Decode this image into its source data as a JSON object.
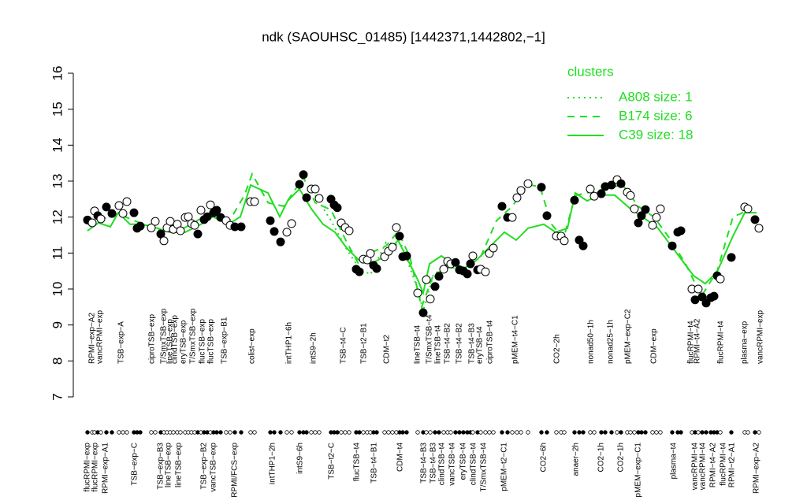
{
  "chart_data": {
    "type": "scatter",
    "title": "ndk (SAOUHSC_01485) [1442371,1442802,−1]",
    "ylim": [
      7,
      16
    ],
    "yticks": [
      7,
      8,
      9,
      10,
      11,
      12,
      13,
      14,
      15,
      16
    ],
    "xlim": [
      10.3,
      97.1
    ],
    "legend_title": "clusters",
    "legend_position": "top-right",
    "points": {
      "x": [
        11.1,
        11.7,
        12.0,
        12.4,
        12.8,
        13.5,
        14.2,
        15.1,
        15.6,
        16.1,
        17.0,
        17.4,
        17.8,
        19.2,
        19.7,
        20.4,
        20.8,
        21.2,
        21.6,
        22.0,
        22.5,
        22.9,
        23.5,
        23.9,
        24.3,
        24.7,
        25.1,
        25.5,
        25.9,
        26.3,
        26.7,
        27.1,
        27.5,
        28.0,
        28.7,
        29.2,
        29.8,
        30.6,
        31.8,
        32.3,
        34.3,
        34.8,
        35.6,
        36.4,
        37.0,
        38.0,
        38.5,
        38.9,
        39.5,
        40.0,
        40.5,
        42.0,
        42.4,
        42.8,
        43.3,
        43.8,
        44.3,
        45.2,
        45.6,
        46.1,
        46.6,
        47.0,
        47.4,
        47.8,
        48.8,
        49.3,
        49.8,
        50.3,
        50.7,
        51.1,
        51.6,
        53.0,
        53.7,
        54.1,
        54.6,
        55.2,
        55.7,
        56.3,
        56.8,
        57.2,
        57.8,
        58.3,
        58.8,
        59.3,
        59.7,
        60.0,
        60.6,
        61.0,
        61.6,
        62.1,
        62.6,
        63.7,
        64.4,
        65.0,
        65.6,
        66.1,
        67.0,
        68.7,
        69.4,
        70.6,
        71.2,
        71.6,
        72.9,
        73.5,
        74.0,
        74.9,
        75.4,
        76.3,
        76.8,
        77.6,
        78.3,
        78.8,
        79.6,
        80.0,
        80.5,
        81.0,
        81.4,
        81.9,
        82.8,
        83.3,
        83.8,
        85.3,
        86.0,
        86.4,
        87.8,
        88.2,
        88.6,
        89.1,
        89.6,
        90.2,
        90.6,
        91.0,
        91.4,
        92.8,
        94.5,
        94.9,
        95.8,
        96.3
      ],
      "y": [
        11.92,
        11.84,
        12.17,
        12.04,
        11.95,
        12.28,
        12.1,
        12.32,
        12.1,
        12.43,
        12.12,
        11.69,
        11.75,
        11.7,
        11.88,
        11.53,
        11.34,
        11.7,
        11.88,
        11.66,
        11.8,
        11.62,
        11.99,
        12.01,
        11.82,
        11.77,
        11.53,
        12.19,
        11.93,
        12.01,
        12.34,
        12.12,
        12.19,
        11.99,
        11.9,
        11.77,
        11.73,
        11.73,
        12.43,
        12.43,
        11.9,
        11.6,
        11.31,
        11.58,
        11.82,
        12.91,
        13.18,
        12.54,
        12.78,
        12.78,
        12.52,
        12.5,
        12.34,
        12.26,
        11.84,
        11.71,
        11.62,
        10.55,
        10.48,
        10.83,
        10.81,
        10.99,
        10.66,
        10.57,
        10.9,
        11.05,
        11.16,
        11.71,
        11.47,
        10.9,
        10.92,
        9.89,
        9.34,
        10.26,
        9.72,
        10.07,
        10.35,
        10.55,
        10.77,
        10.7,
        10.74,
        10.53,
        10.5,
        10.42,
        10.7,
        10.92,
        10.53,
        10.55,
        10.48,
        10.99,
        11.14,
        12.3,
        11.99,
        11.99,
        12.54,
        12.74,
        12.93,
        12.83,
        12.04,
        11.47,
        11.47,
        11.34,
        12.47,
        11.36,
        11.2,
        12.78,
        12.58,
        12.65,
        12.85,
        12.89,
        13.04,
        12.93,
        12.69,
        12.6,
        12.23,
        11.84,
        12.04,
        12.21,
        11.77,
        11.99,
        12.23,
        11.2,
        11.58,
        11.62,
        10.0,
        9.7,
        10.0,
        9.78,
        9.61,
        9.76,
        9.8,
        10.37,
        10.28,
        10.88,
        12.28,
        12.23,
        11.93,
        11.69
      ],
      "filled": [
        true,
        false,
        false,
        true,
        false,
        true,
        true,
        false,
        false,
        false,
        true,
        true,
        true,
        false,
        false,
        true,
        false,
        false,
        false,
        false,
        false,
        false,
        false,
        false,
        false,
        false,
        true,
        false,
        true,
        true,
        false,
        true,
        true,
        true,
        false,
        false,
        true,
        true,
        false,
        false,
        true,
        true,
        true,
        false,
        false,
        true,
        true,
        true,
        false,
        false,
        false,
        true,
        true,
        true,
        false,
        false,
        false,
        true,
        true,
        false,
        false,
        false,
        true,
        true,
        false,
        false,
        false,
        false,
        true,
        true,
        true,
        false,
        true,
        false,
        false,
        true,
        true,
        false,
        false,
        false,
        true,
        true,
        true,
        true,
        true,
        false,
        true,
        false,
        false,
        false,
        false,
        true,
        true,
        false,
        false,
        false,
        false,
        true,
        true,
        false,
        false,
        false,
        true,
        true,
        true,
        false,
        false,
        true,
        true,
        true,
        false,
        true,
        false,
        false,
        false,
        true,
        true,
        true,
        false,
        false,
        false,
        true,
        true,
        true,
        false,
        true,
        false,
        true,
        true,
        true,
        true,
        true,
        false,
        true,
        false,
        false,
        true,
        false
      ]
    },
    "series": [
      {
        "name": "A808 size: 1",
        "color": "#22dd22",
        "dash": "dotted",
        "x": [
          40.0,
          42.0,
          44.0,
          45.5,
          47.0,
          49.0,
          51.0,
          53.0,
          53.7,
          55.0,
          57.0
        ],
        "values": [
          12.6,
          11.9,
          11.1,
          10.6,
          10.4,
          11.3,
          11.2,
          10.0,
          9.4,
          10.4,
          10.7
        ]
      },
      {
        "name": "B174 size: 6",
        "color": "#22dd22",
        "dash": "dashed",
        "x": [
          11.1,
          13.0,
          15.0,
          17.0,
          19.0,
          21.0,
          23.0,
          25.0,
          27.0,
          29.0,
          31.0,
          32.0,
          34.0,
          36.0,
          38.5,
          40.0,
          42.0,
          44.0,
          45.5,
          47.0,
          49.0,
          50.5,
          52.0,
          53.5,
          55.0,
          57.0,
          59.0,
          61.0,
          63.0,
          65.0,
          67.0,
          68.5,
          70.0,
          71.5,
          73.0,
          75.0,
          77.0,
          79.0,
          81.0,
          83.0,
          85.0,
          87.0,
          89.0,
          91.0,
          93.0,
          95.0
        ],
        "values": [
          11.8,
          11.95,
          12.1,
          11.9,
          11.75,
          11.6,
          11.65,
          11.9,
          12.15,
          11.85,
          12.6,
          13.2,
          12.4,
          12.3,
          13.1,
          12.4,
          12.2,
          11.3,
          10.7,
          11.0,
          11.2,
          11.6,
          10.9,
          9.5,
          10.4,
          10.6,
          10.55,
          10.9,
          11.9,
          12.3,
          12.9,
          12.85,
          11.8,
          11.4,
          12.6,
          12.7,
          12.8,
          12.9,
          12.3,
          12.0,
          11.4,
          10.7,
          9.8,
          10.5,
          12.0,
          12.2
        ]
      },
      {
        "name": "C39 size: 18",
        "color": "#22dd22",
        "dash": "solid",
        "x": [
          11.1,
          12.5,
          14.0,
          15.0,
          16.5,
          18.0,
          20.0,
          21.5,
          23.5,
          25.5,
          27.0,
          29.0,
          30.5,
          31.8,
          34.0,
          35.5,
          36.5,
          38.0,
          39.5,
          41.0,
          42.5,
          44.0,
          45.5,
          47.0,
          49.0,
          50.5,
          51.5,
          53.0,
          53.7,
          54.5,
          56.0,
          57.5,
          59.0,
          60.5,
          62.5,
          64.0,
          65.5,
          67.0,
          69.0,
          70.5,
          72.0,
          73.0,
          74.5,
          76.0,
          78.0,
          80.0,
          81.5,
          83.5,
          85.0,
          86.5,
          88.0,
          89.5,
          91.0,
          93.0,
          94.5,
          96.0
        ],
        "values": [
          11.62,
          11.84,
          11.73,
          12.12,
          11.8,
          11.8,
          11.69,
          11.58,
          11.58,
          11.8,
          12.01,
          11.8,
          12.01,
          12.89,
          12.67,
          12.01,
          12.45,
          12.78,
          12.23,
          11.8,
          11.58,
          11.14,
          10.81,
          10.7,
          10.92,
          11.36,
          10.92,
          10.26,
          9.89,
          10.7,
          10.92,
          10.7,
          10.59,
          10.81,
          11.25,
          11.58,
          11.36,
          11.69,
          11.8,
          11.58,
          11.69,
          12.67,
          12.45,
          12.61,
          12.61,
          12.23,
          12.01,
          11.69,
          11.25,
          10.81,
          10.37,
          10.15,
          10.48,
          11.47,
          12.12,
          12.12
        ]
      }
    ],
    "labels_top": {
      "x": [
        11.7,
        12.7,
        15.4,
        19.3,
        20.8,
        21.6,
        22.2,
        23.3,
        24.5,
        25.7,
        26.8,
        28.5,
        32.0,
        36.7,
        39.8,
        43.6,
        46.2,
        49.1,
        53.0,
        54.5,
        55.6,
        56.8,
        58.3,
        59.9,
        60.9,
        62.2,
        65.4,
        70.7,
        75.0,
        77.5,
        79.7,
        83.0,
        87.7,
        88.5,
        91.5,
        94.5,
        96.5
      ],
      "text": [
        "RPMI−exp−A2",
        "vancRPMI−exp",
        "TSB−exp−A",
        "ciproTSB−exp",
        "T/SmxTSB−exp",
        "lineTSB−exp",
        "clindTSB−exp",
        "eryTSB−exp",
        "T/SmxTSB−exp",
        "flucTSB−exp",
        "flucTSB−exp",
        "TSB−exp−B1",
        "colist−exp",
        "intTHP1−6h",
        "intS9−2h",
        "TSB−t4−C",
        "TSB−t2−B1",
        "CDM−t2",
        "lineTSB−t4",
        "T/SmxTSB−t4",
        "lineTSB−t4",
        "TSB−t4−B2",
        "TSB−t4−B2",
        "TSB−t4−B3",
        "eryTSB−t4",
        "ciproTSB−t4",
        "pMEM−t4−C1",
        "CO2−2h",
        "nonad50−1h",
        "nonad25−1h",
        "pMEM−exp−C2",
        "CDM−exp",
        "flucRPMI−t4",
        "RPMI−t4−A2",
        "flucRPMI−t4",
        "plasma−exp",
        "vancRPMI−exp"
      ]
    },
    "labels_bottom": {
      "x": [
        11.1,
        12.1,
        13.4,
        17.1,
        20.4,
        21.4,
        22.7,
        25.9,
        27.1,
        29.8,
        34.6,
        38.1,
        42.1,
        45.3,
        47.5,
        50.8,
        53.8,
        55.0,
        56.1,
        57.4,
        58.8,
        60.1,
        61.4,
        64.0,
        69.0,
        73.1,
        76.3,
        78.8,
        81.0,
        85.5,
        88.2,
        89.2,
        90.5,
        91.8,
        92.9,
        96.0
      ],
      "text": [
        "flucRPMI−exp",
        "flucRPMI−exp",
        "RPMI−exp−A1",
        "TSB−exp−C",
        "TSB−exp−B3",
        "lineTSB−exp",
        "lineTSB−exp",
        "TSB−exp−B2",
        "vancTSB−exp",
        "RPMI/FCS−exp",
        "intTHP1−2h",
        "intS9−6h",
        "TSB−t2−C",
        "flucTSB−t4",
        "TSB−t4−B1",
        "CDM−t4",
        "TSB−t4−B3",
        "TSB−t4−B3",
        "clindTSB−t4",
        "vancTSB−t4",
        "eryTSB−t4",
        "clindTSB−t4",
        "T/SmxTSB−t4",
        "pMEM−t2−C1",
        "CO2−6h",
        "anaer−2h",
        "CO2−1h",
        "CO2−1h",
        "pMEM−exp−C1",
        "plasma−t4",
        "vancRPMI−t4",
        "vancRPMI−t4",
        "RPMI−t4−A2",
        "flucRPMI−t4",
        "RPMI−t2−A1",
        "RPMI−exp−A2"
      ]
    }
  }
}
